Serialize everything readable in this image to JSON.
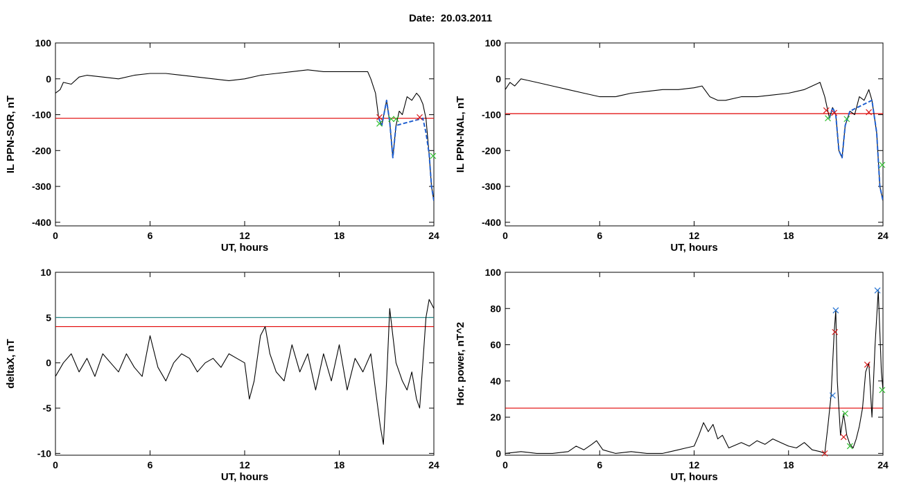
{
  "figure_title": "Date:  20.03.2011",
  "chart_data": [
    {
      "type": "line",
      "ylabel": "IL PPN-SOR, nT",
      "xlabel": "UT, hours",
      "xlim": [
        0,
        24
      ],
      "ylim": [
        -410,
        100
      ],
      "xticks": [
        0,
        6,
        12,
        18,
        24
      ],
      "yticks": [
        100,
        0,
        -100,
        -200,
        -300,
        -400
      ],
      "series": [
        {
          "color": "#000000",
          "x": [
            0,
            0.3,
            0.5,
            1,
            1.5,
            2,
            3,
            4,
            5,
            6,
            7,
            8,
            9,
            10,
            11,
            12,
            13,
            14,
            15,
            16,
            17,
            18,
            19,
            19.8,
            20,
            20.3,
            20.5,
            20.7,
            21,
            21.2,
            21.4,
            21.6,
            21.8,
            22,
            22.3,
            22.6,
            22.9,
            23.1,
            23.3,
            23.5,
            23.7,
            23.85,
            24
          ],
          "y": [
            -40,
            -30,
            -10,
            -15,
            5,
            10,
            5,
            0,
            10,
            15,
            15,
            10,
            5,
            0,
            -5,
            0,
            10,
            15,
            20,
            25,
            20,
            20,
            20,
            20,
            0,
            -40,
            -110,
            -130,
            -60,
            -120,
            -220,
            -130,
            -90,
            -100,
            -50,
            -60,
            -40,
            -50,
            -70,
            -110,
            -210,
            -300,
            -340
          ]
        },
        {
          "color": "#1f5fd0",
          "dashed": true,
          "x": [
            20.5,
            20.7,
            21.0,
            21.2,
            21.4,
            21.6,
            23.3,
            23.5,
            23.7,
            23.85,
            24
          ],
          "y": [
            -110,
            -130,
            -60,
            -120,
            -220,
            -130,
            -110,
            -150,
            -210,
            -300,
            -340
          ]
        }
      ],
      "threshold_lines": [
        {
          "y": -110,
          "color": "#e00000"
        }
      ],
      "markers": [
        {
          "x": 20.55,
          "y": -107,
          "color": "#d81b1b"
        },
        {
          "x": 20.55,
          "y": -125,
          "color": "#2fbf2f"
        },
        {
          "x": 21.3,
          "y": -112,
          "color": "#2fbf2f"
        },
        {
          "x": 21.6,
          "y": -112,
          "color": "#2fbf2f"
        },
        {
          "x": 23.1,
          "y": -107,
          "color": "#d81b1b"
        },
        {
          "x": 23.95,
          "y": -215,
          "color": "#2fbf2f"
        }
      ]
    },
    {
      "type": "line",
      "ylabel": "IL PPN-NAL, nT",
      "xlabel": "UT, hours",
      "xlim": [
        0,
        24
      ],
      "ylim": [
        -410,
        100
      ],
      "xticks": [
        0,
        6,
        12,
        18,
        24
      ],
      "yticks": [
        100,
        0,
        -100,
        -200,
        -300,
        -400
      ],
      "series": [
        {
          "color": "#000000",
          "x": [
            0,
            0.3,
            0.6,
            1,
            1.5,
            2,
            3,
            4,
            5,
            6,
            7,
            8,
            9,
            10,
            11,
            12,
            12.5,
            13,
            13.5,
            14,
            15,
            16,
            17,
            18,
            19,
            19.5,
            20,
            20.3,
            20.6,
            20.8,
            21,
            21.2,
            21.4,
            21.6,
            21.9,
            22.2,
            22.5,
            22.8,
            23.1,
            23.3,
            23.6,
            23.8,
            24
          ],
          "y": [
            -30,
            -10,
            -20,
            0,
            -5,
            -10,
            -20,
            -30,
            -40,
            -50,
            -50,
            -40,
            -35,
            -30,
            -30,
            -25,
            -20,
            -50,
            -60,
            -60,
            -50,
            -50,
            -45,
            -40,
            -30,
            -20,
            -10,
            -50,
            -110,
            -80,
            -100,
            -200,
            -220,
            -130,
            -90,
            -100,
            -50,
            -60,
            -30,
            -60,
            -150,
            -300,
            -340
          ]
        },
        {
          "color": "#1f5fd0",
          "dashed": true,
          "x": [
            20.6,
            20.8,
            21.0,
            21.2,
            21.4,
            21.6,
            21.9,
            23.3,
            23.6,
            23.8,
            24
          ],
          "y": [
            -110,
            -80,
            -100,
            -200,
            -220,
            -130,
            -90,
            -60,
            -150,
            -300,
            -340
          ]
        }
      ],
      "threshold_lines": [
        {
          "y": -97,
          "color": "#e00000"
        }
      ],
      "markers": [
        {
          "x": 20.4,
          "y": -88,
          "color": "#d81b1b"
        },
        {
          "x": 20.5,
          "y": -110,
          "color": "#2fbf2f"
        },
        {
          "x": 20.9,
          "y": -95,
          "color": "#d81b1b"
        },
        {
          "x": 21.7,
          "y": -112,
          "color": "#2fbf2f"
        },
        {
          "x": 23.1,
          "y": -93,
          "color": "#d81b1b"
        },
        {
          "x": 23.95,
          "y": -240,
          "color": "#2fbf2f"
        }
      ]
    },
    {
      "type": "line",
      "ylabel": "deltaX, nT",
      "xlabel": "UT, hours",
      "xlim": [
        0,
        24
      ],
      "ylim": [
        -10.2,
        10
      ],
      "xticks": [
        0,
        6,
        12,
        18,
        24
      ],
      "yticks": [
        10,
        5,
        0,
        -5,
        -10
      ],
      "series": [
        {
          "color": "#000000",
          "x": [
            0,
            0.5,
            1,
            1.5,
            2,
            2.5,
            3,
            3.5,
            4,
            4.5,
            5,
            5.5,
            6,
            6.5,
            7,
            7.5,
            8,
            8.5,
            9,
            9.5,
            10,
            10.5,
            11,
            11.5,
            12,
            12.3,
            12.6,
            13,
            13.3,
            13.6,
            14,
            14.5,
            15,
            15.5,
            16,
            16.5,
            17,
            17.5,
            18,
            18.5,
            19,
            19.5,
            20,
            20.3,
            20.6,
            20.8,
            21,
            21.2,
            21.4,
            21.6,
            21.8,
            22,
            22.3,
            22.6,
            22.9,
            23.1,
            23.3,
            23.5,
            23.7,
            24
          ],
          "y": [
            -1.5,
            0,
            1,
            -1,
            0.5,
            -1.5,
            1,
            0,
            -1,
            1,
            -0.5,
            -1.5,
            3,
            -0.5,
            -2,
            0,
            1,
            0.5,
            -1,
            0,
            0.5,
            -0.5,
            1,
            0.5,
            0,
            -4,
            -2,
            3,
            4,
            1,
            -1,
            -2,
            2,
            -1,
            1,
            -3,
            1,
            -2,
            2,
            -3,
            0.5,
            -1,
            1,
            -3,
            -7,
            -9,
            -2,
            6,
            3,
            0,
            -1,
            -2,
            -3,
            -1,
            -4,
            -5,
            0,
            5,
            7,
            6
          ]
        }
      ],
      "threshold_lines": [
        {
          "y": 5,
          "color": "#2a8a8a"
        },
        {
          "y": 4,
          "color": "#e00000"
        }
      ],
      "markers": []
    },
    {
      "type": "line",
      "ylabel": "Hor. power, nT^2",
      "xlabel": "UT, hours",
      "xlim": [
        0,
        24
      ],
      "ylim": [
        -1,
        100
      ],
      "xticks": [
        0,
        6,
        12,
        18,
        24
      ],
      "yticks": [
        100,
        80,
        60,
        40,
        20,
        0
      ],
      "series": [
        {
          "color": "#000000",
          "x": [
            0,
            1,
            2,
            3,
            4,
            4.5,
            5,
            5.5,
            5.8,
            6.2,
            7,
            8,
            9,
            10,
            10.5,
            11,
            11.5,
            12,
            12.3,
            12.6,
            12.9,
            13.2,
            13.5,
            13.8,
            14.2,
            15,
            15.5,
            16,
            16.5,
            17,
            17.5,
            18,
            18.5,
            19,
            19.5,
            20,
            20.3,
            20.5,
            20.7,
            20.9,
            21,
            21.1,
            21.3,
            21.5,
            21.7,
            21.9,
            22.1,
            22.3,
            22.5,
            22.7,
            22.9,
            23.1,
            23.3,
            23.5,
            23.7,
            23.9,
            24
          ],
          "y": [
            0,
            1,
            0,
            0,
            1,
            4,
            2,
            5,
            7,
            2,
            0,
            1,
            0,
            0,
            1,
            2,
            3,
            4,
            10,
            17,
            12,
            16,
            8,
            10,
            3,
            6,
            4,
            7,
            5,
            8,
            6,
            4,
            3,
            6,
            2,
            1,
            0,
            15,
            32,
            67,
            79,
            40,
            10,
            22,
            10,
            5,
            3,
            8,
            15,
            25,
            45,
            50,
            20,
            60,
            90,
            45,
            35
          ]
        }
      ],
      "threshold_lines": [
        {
          "y": 25,
          "color": "#e00000"
        }
      ],
      "markers": [
        {
          "x": 20.8,
          "y": 32,
          "color": "#1f6fd0"
        },
        {
          "x": 21.0,
          "y": 79,
          "color": "#1f6fd0"
        },
        {
          "x": 20.95,
          "y": 67,
          "color": "#d81b1b"
        },
        {
          "x": 21.6,
          "y": 22,
          "color": "#2fbf2f"
        },
        {
          "x": 21.5,
          "y": 9,
          "color": "#d81b1b"
        },
        {
          "x": 21.9,
          "y": 4,
          "color": "#2fbf2f"
        },
        {
          "x": 23.0,
          "y": 49,
          "color": "#d81b1b"
        },
        {
          "x": 23.65,
          "y": 90,
          "color": "#1f6fd0"
        },
        {
          "x": 20.3,
          "y": 0,
          "color": "#d81b1b"
        },
        {
          "x": 23.95,
          "y": 35,
          "color": "#2fbf2f"
        }
      ]
    }
  ]
}
